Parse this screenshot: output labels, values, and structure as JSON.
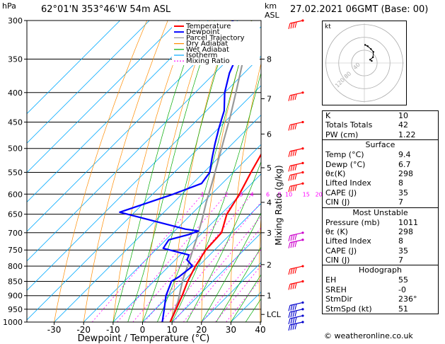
{
  "header": {
    "location": "62°01'N 353°46'W 54m ASL",
    "datetime": "27.02.2021 06GMT (Base: 00)",
    "left_unit": "hPa",
    "right_unit_1": "km",
    "right_unit_2": "ASL"
  },
  "chart_data": {
    "type": "line",
    "title": "",
    "xlabel": "Dewpoint / Temperature (°C)",
    "ylabel": "hPa",
    "right_label": "Mixing Ratio (g/kg)",
    "xlim": [
      -35,
      40
    ],
    "ylim": [
      1000,
      300
    ],
    "x_ticks": [
      -30,
      -20,
      -10,
      0,
      10,
      20,
      30,
      40
    ],
    "pressure_levels": [
      300,
      350,
      400,
      450,
      500,
      550,
      600,
      650,
      700,
      750,
      800,
      850,
      900,
      950,
      1000
    ],
    "km_labels": [
      {
        "p": 350,
        "label": "8"
      },
      {
        "p": 410,
        "label": "7"
      },
      {
        "p": 472,
        "label": "6"
      },
      {
        "p": 540,
        "label": "5"
      },
      {
        "p": 620,
        "label": "4"
      },
      {
        "p": 700,
        "label": "3"
      },
      {
        "p": 795,
        "label": "2"
      },
      {
        "p": 900,
        "label": "1"
      },
      {
        "p": 970,
        "label": "LCL"
      }
    ],
    "mixing_ratio_labels": [
      "1",
      "2",
      "3",
      "4",
      "6",
      "8",
      "10",
      "15",
      "20",
      "25"
    ],
    "mixing_ratio_values": [
      1,
      2,
      3,
      4,
      6,
      8,
      10,
      15,
      20,
      25
    ],
    "legend": [
      "Temperature",
      "Dewpoint",
      "Parcel Trajectory",
      "Dry Adiabat",
      "Wet Adiabat",
      "Isotherm",
      "Mixing Ratio"
    ],
    "legend_colors": [
      "#ff0000",
      "#0000ff",
      "#999999",
      "#ff8c00",
      "#00aa00",
      "#00aaff",
      "#ff00ff"
    ],
    "series": [
      {
        "name": "Temperature",
        "points": [
          [
            9.4,
            1000
          ],
          [
            7,
            950
          ],
          [
            4.5,
            900
          ],
          [
            1.5,
            850
          ],
          [
            -1,
            800
          ],
          [
            -3,
            750
          ],
          [
            -3.5,
            700
          ],
          [
            -8,
            650
          ],
          [
            -10.5,
            600
          ],
          [
            -14,
            550
          ],
          [
            -17.5,
            500
          ],
          [
            -22,
            450
          ],
          [
            -27,
            400
          ],
          [
            -33,
            350
          ],
          [
            -40,
            300
          ]
        ]
      },
      {
        "name": "Dewpoint",
        "points": [
          [
            6.7,
            1000
          ],
          [
            3,
            950
          ],
          [
            -1,
            900
          ],
          [
            -4,
            850
          ],
          [
            -3,
            835
          ],
          [
            -2,
            800
          ],
          [
            -6,
            780
          ],
          [
            -7,
            765
          ],
          [
            -18,
            745
          ],
          [
            -19,
            720
          ],
          [
            -14,
            705
          ],
          [
            -12,
            695
          ],
          [
            -17,
            690
          ],
          [
            -45,
            645
          ],
          [
            -33,
            600
          ],
          [
            -27,
            575
          ],
          [
            -28,
            550
          ],
          [
            -32,
            520
          ],
          [
            -36,
            490
          ],
          [
            -40,
            460
          ],
          [
            -44,
            430
          ],
          [
            -50,
            400
          ],
          [
            -55,
            370
          ],
          [
            -59,
            340
          ],
          [
            -63,
            320
          ],
          [
            -69,
            305
          ],
          [
            -72,
            300
          ]
        ]
      },
      {
        "name": "Parcel Trajectory",
        "points": [
          [
            9.4,
            1000
          ],
          [
            7,
            955
          ],
          [
            5,
            920
          ],
          [
            2,
            880
          ],
          [
            -1,
            840
          ],
          [
            -4,
            795
          ],
          [
            -7,
            755
          ],
          [
            -10.5,
            710
          ],
          [
            -14.5,
            665
          ],
          [
            -19,
            620
          ],
          [
            -23.5,
            575
          ],
          [
            -28.5,
            530
          ],
          [
            -34,
            485
          ],
          [
            -40,
            440
          ],
          [
            -47,
            395
          ],
          [
            -55,
            350
          ],
          [
            -63,
            310
          ]
        ]
      }
    ]
  },
  "hodograph": {
    "unit_label": "kt",
    "ring_labels": [
      "40",
      "80",
      "120"
    ],
    "trace": [
      [
        0.18,
        0.05
      ],
      [
        0.14,
        0.08
      ],
      [
        0.21,
        0.14
      ],
      [
        0.22,
        0.27
      ],
      [
        0.16,
        0.34
      ],
      [
        0.08,
        0.41
      ],
      [
        0.02,
        0.44
      ]
    ]
  },
  "stats": {
    "indices": [
      {
        "label": "K",
        "value": "10"
      },
      {
        "label": "Totals Totals",
        "value": "42"
      },
      {
        "label": "PW (cm)",
        "value": "1.22"
      }
    ],
    "surface": {
      "title": "Surface",
      "rows": [
        {
          "label": "Temp (°C)",
          "value": "9.4"
        },
        {
          "label": "Dewp (°C)",
          "value": "6.7"
        },
        {
          "label": "θε(K)",
          "value": "298"
        },
        {
          "label": "Lifted Index",
          "value": "8"
        },
        {
          "label": "CAPE (J)",
          "value": "35"
        },
        {
          "label": "CIN (J)",
          "value": "7"
        }
      ]
    },
    "most_unstable": {
      "title": "Most Unstable",
      "rows": [
        {
          "label": "Pressure (mb)",
          "value": "1011"
        },
        {
          "label": "θε (K)",
          "value": "298"
        },
        {
          "label": "Lifted Index",
          "value": "8"
        },
        {
          "label": "CAPE (J)",
          "value": "35"
        },
        {
          "label": "CIN (J)",
          "value": "7"
        }
      ]
    },
    "hodograph_params": {
      "title": "Hodograph",
      "rows": [
        {
          "label": "EH",
          "value": "55"
        },
        {
          "label": "SREH",
          "value": "-0"
        },
        {
          "label": "StmDir",
          "value": "236°"
        },
        {
          "label": "StmSpd (kt)",
          "value": "51"
        }
      ]
    }
  },
  "footer": "© weatheronline.co.uk"
}
